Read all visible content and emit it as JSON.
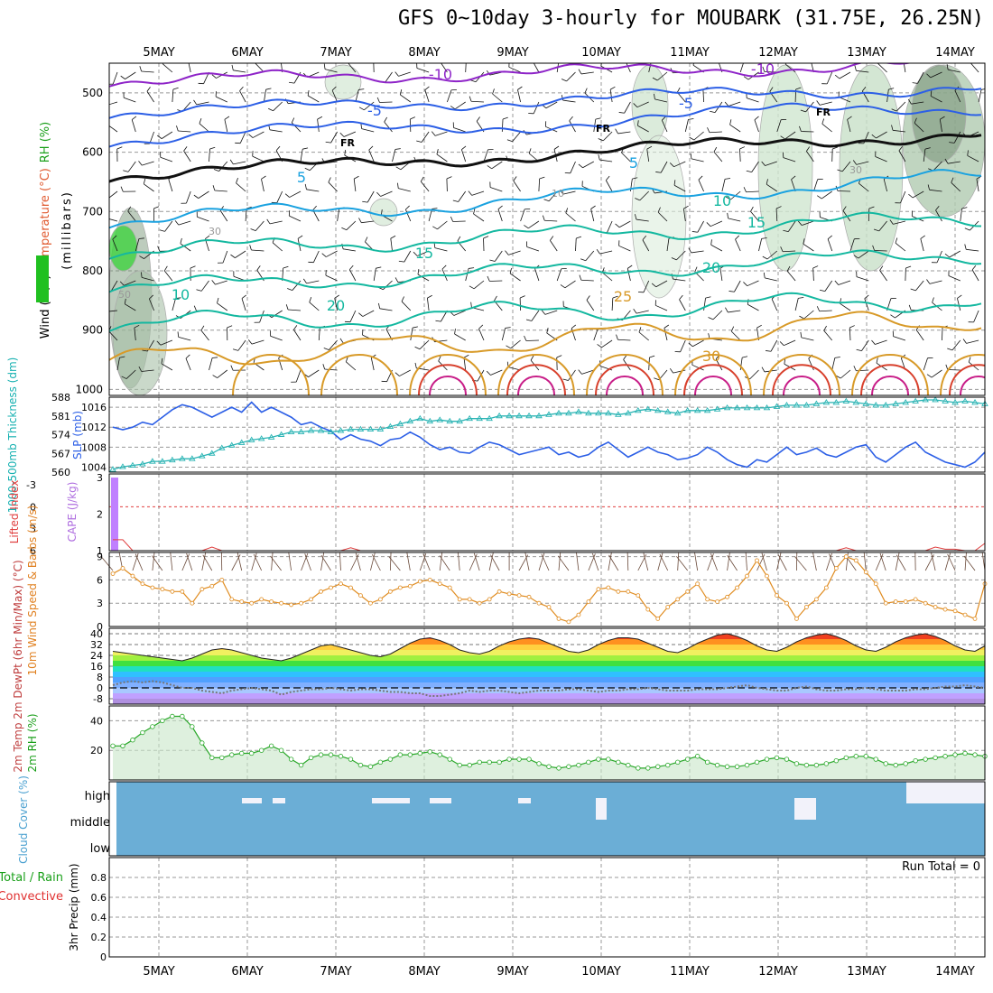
{
  "title": "GFS 0~10day 3-hourly for MOUBARK (31.75E, 26.25N)",
  "days": [
    "5MAY",
    "6MAY",
    "7MAY",
    "8MAY",
    "9MAY",
    "10MAY",
    "11MAY",
    "12MAY",
    "13MAY",
    "14MAY"
  ],
  "colors": {
    "purple": "#8e24c8",
    "blue": "#2c5fe6",
    "lightblue": "#1aa2e0",
    "teal": "#14b8a0",
    "orange": "#d89a28",
    "red": "#d8402c",
    "green": "#2aa82a",
    "cloud": "#6baed6"
  },
  "chart_data": [
    {
      "type": "line",
      "panel": "upper-air",
      "ylabel_parts": [
        "Wind (m/s)",
        "Temperature (°C)",
        "RH (%)"
      ],
      "ylabel2": "(millibars)",
      "yticks": [
        500,
        600,
        700,
        800,
        900,
        1000
      ],
      "contour_labels": [
        "-10",
        "-10",
        "-5",
        "-5",
        "FR",
        "FR",
        "FR",
        "5",
        "5",
        "10",
        "10",
        "15",
        "15",
        "20",
        "20",
        "25",
        "30",
        "10",
        "30",
        "30",
        "50"
      ],
      "series": [
        {
          "name": "-10",
          "values": [
            -10,
            -10,
            -10
          ]
        },
        {
          "name": "-5",
          "values": [
            -5,
            -5,
            -5
          ]
        },
        {
          "name": "FR",
          "values": [
            0,
            0,
            0
          ]
        },
        {
          "name": "5",
          "values": [
            5,
            5,
            5
          ]
        },
        {
          "name": "10",
          "values": [
            10,
            10,
            10
          ]
        },
        {
          "name": "15",
          "values": [
            15,
            15,
            15
          ]
        },
        {
          "name": "20",
          "values": [
            20,
            20,
            20
          ]
        },
        {
          "name": "25",
          "values": [
            25,
            25,
            25
          ]
        }
      ]
    },
    {
      "type": "line",
      "panel": "slp-thickness",
      "ylabel_left": "1000-500mb Thickness (dm)",
      "ylabel_right": "SLP (mb)",
      "yticks_left": [
        560,
        567,
        574,
        581,
        588
      ],
      "yticks_right": [
        1004,
        1008,
        1012,
        1016
      ],
      "ylim_left": [
        560,
        588
      ],
      "ylim_right": [
        1003,
        1018
      ],
      "series": [
        {
          "name": "SLP",
          "values": [
            1012,
            1011.5,
            1012,
            1013,
            1012.5,
            1014,
            1015.5,
            1016.5,
            1016,
            1015,
            1014,
            1015,
            1016,
            1015,
            1017,
            1015,
            1016,
            1015,
            1014,
            1012.5,
            1013,
            1012,
            1011.2,
            1009.5,
            1010.5,
            1009.6,
            1009.2,
            1008.3,
            1009.5,
            1009.8,
            1011,
            1010,
            1008.5,
            1007.5,
            1008,
            1007,
            1006.8,
            1008,
            1009,
            1008.5,
            1007.5,
            1006.5,
            1007,
            1007.5,
            1008,
            1006.5,
            1007,
            1006,
            1006.5,
            1008,
            1009,
            1007.5,
            1006,
            1007,
            1008,
            1007,
            1006.5,
            1005.5,
            1005.8,
            1006.5,
            1008,
            1007,
            1005.5,
            1004.5,
            1004,
            1005.5,
            1005,
            1006.5,
            1008,
            1006.5,
            1007,
            1007.8,
            1006.5,
            1006,
            1007,
            1008,
            1008.5,
            1006,
            1005,
            1006.5,
            1008,
            1009,
            1007,
            1006,
            1005,
            1004.5,
            1004,
            1005,
            1007
          ]
        },
        {
          "name": "Thickness",
          "values": [
            561,
            562,
            562.5,
            563,
            564,
            564,
            564.5,
            565,
            565,
            566,
            567,
            569,
            570,
            571,
            572,
            572.5,
            573,
            574,
            575,
            575,
            575.5,
            575.5,
            575,
            575.5,
            576,
            576,
            576,
            576,
            577,
            578,
            579,
            580,
            579,
            579.5,
            579,
            579,
            580,
            580,
            580,
            581,
            581,
            581,
            581,
            581,
            581.5,
            582,
            582,
            582.5,
            582,
            582,
            582,
            581.5,
            582,
            583,
            583.5,
            583,
            582.5,
            582,
            583,
            583,
            583,
            583.5,
            584,
            584,
            584,
            584,
            584,
            584.5,
            585,
            585,
            585,
            585.5,
            586,
            586,
            586.5,
            586,
            585.5,
            585,
            585,
            585.5,
            586,
            586.5,
            587,
            587,
            586.5,
            586,
            586.5,
            586,
            585.5
          ]
        }
      ]
    },
    {
      "type": "bar",
      "panel": "cape-li",
      "ylabel_left": "Lifted Index",
      "ylabel_right": "CAPE (J/kg)",
      "yticks_left": [
        "-3",
        "0",
        "3",
        "6"
      ],
      "yticks_right": [
        "3",
        "2",
        "1"
      ],
      "series": [
        {
          "name": "CAPE",
          "values": [
            3
          ]
        },
        {
          "name": "Lifted Index",
          "values": [
            4.5,
            4.5,
            6,
            6,
            6,
            6,
            6,
            6,
            6,
            6,
            5.5,
            6,
            6,
            6,
            6,
            6,
            6,
            6,
            6,
            6,
            6,
            6,
            6,
            6,
            5.6,
            6,
            6,
            6,
            6,
            6,
            6,
            6,
            6,
            6,
            6,
            6,
            6,
            6,
            6,
            6,
            6,
            6,
            6,
            6,
            6,
            6,
            6,
            6,
            6,
            6,
            6,
            6,
            6,
            6,
            6,
            6,
            6,
            6,
            6,
            6,
            6,
            6,
            6,
            6,
            6,
            6,
            6,
            6,
            6,
            6,
            6,
            6,
            6,
            6,
            5.6,
            6,
            6,
            6,
            6,
            6,
            6,
            6,
            6,
            5.5,
            5.8,
            5.8,
            6,
            6,
            5
          ]
        }
      ]
    },
    {
      "type": "line",
      "panel": "wind10m",
      "ylabel": "10m Wind Speed & Barbs (m/s)",
      "yticks": [
        0,
        3,
        6,
        9
      ],
      "ylim": [
        0,
        9
      ],
      "series": [
        {
          "name": "10m wind speed",
          "values": [
            6.8,
            7.5,
            6.5,
            5.5,
            5,
            4.8,
            4.5,
            4.5,
            3,
            4.8,
            5.2,
            6,
            3.5,
            3.2,
            3,
            3.5,
            3.2,
            3,
            2.8,
            3,
            3.5,
            4.5,
            5,
            5.5,
            5,
            4,
            3,
            3.5,
            4.5,
            5,
            5.2,
            5.8,
            6,
            5.5,
            5,
            3.5,
            3.5,
            3,
            3.5,
            4.5,
            4.2,
            4,
            3.8,
            3,
            2.5,
            1,
            0.6,
            1.5,
            3.2,
            4.8,
            5,
            4.5,
            4.5,
            4,
            2.2,
            1,
            2.5,
            3.5,
            4.5,
            5.5,
            3.5,
            3.2,
            3.8,
            5,
            6.5,
            8.5,
            6.5,
            4,
            3,
            1,
            2.5,
            3.5,
            5,
            7.5,
            9,
            8.5,
            7,
            5.5,
            3,
            3.2,
            3.2,
            3.5,
            3,
            2.5,
            2.2,
            2,
            1.5,
            1,
            5.5
          ]
        }
      ]
    },
    {
      "type": "line",
      "panel": "temp-dewpt",
      "ylabel": "2m Temp 2m DewPt (6hr Min/Max) (°C)",
      "yticks": [
        -8,
        0,
        8,
        16,
        24,
        32,
        40
      ],
      "ylim": [
        -12,
        44
      ],
      "series": [
        {
          "name": "2m Temp",
          "values": [
            27,
            26,
            25,
            24,
            23,
            22,
            21,
            20,
            22,
            25,
            28,
            29,
            28,
            26,
            24,
            22,
            21,
            20,
            22,
            25,
            28,
            31,
            32,
            30,
            28,
            26,
            24,
            23,
            25,
            29,
            33,
            36,
            37,
            35,
            32,
            28,
            26,
            25,
            27,
            31,
            34,
            36,
            37,
            36,
            33,
            30,
            27,
            26,
            28,
            32,
            35,
            37,
            37,
            36,
            33,
            30,
            27,
            26,
            29,
            33,
            36,
            39,
            40,
            38,
            35,
            31,
            28,
            27,
            30,
            34,
            37,
            39,
            40,
            38,
            35,
            31,
            28,
            27,
            30,
            34,
            37,
            39,
            40,
            38,
            35,
            31,
            28,
            27,
            31
          ]
        },
        {
          "name": "2m DewPt",
          "values": [
            2,
            4,
            5,
            4,
            5,
            4,
            2,
            0,
            0,
            -2,
            -3,
            -4,
            -2,
            -1,
            0,
            -1,
            -2,
            -5,
            -3,
            -2,
            -1,
            -1,
            0,
            -1,
            -2,
            -1,
            -1,
            -2,
            -3,
            -3,
            -4,
            -4,
            -6,
            -6,
            -5,
            -4,
            -2,
            -3,
            -2,
            -2,
            -3,
            -4,
            -3,
            -2,
            -2,
            -2,
            -1,
            -1,
            -2,
            -3,
            -2,
            -2,
            -1,
            -1,
            0,
            -1,
            -2,
            -2,
            -2,
            -1,
            -1,
            -1,
            0,
            1,
            2,
            0,
            -1,
            -2,
            -2,
            0,
            1,
            -1,
            -2,
            -2,
            -1,
            -1,
            0,
            -1,
            -2,
            -2,
            -2,
            -1,
            -1,
            0,
            1,
            1,
            2,
            1,
            0
          ]
        }
      ]
    },
    {
      "type": "area",
      "panel": "rh2m",
      "ylabel": "2m RH (%)",
      "yticks": [
        20,
        40
      ],
      "ylim": [
        0,
        50
      ],
      "series": [
        {
          "name": "2m RH",
          "values": [
            23,
            23,
            27,
            32,
            36,
            40,
            43,
            43,
            36,
            25,
            15,
            15,
            17,
            18,
            18,
            20,
            23,
            20,
            14,
            10,
            15,
            17,
            17,
            16,
            14,
            10,
            9,
            12,
            14,
            17,
            17,
            18,
            19,
            17,
            14,
            10,
            10,
            12,
            12,
            12,
            14,
            14,
            14,
            11,
            9,
            8,
            9,
            10,
            12,
            14,
            14,
            12,
            10,
            8,
            8,
            9,
            10,
            12,
            14,
            16,
            12,
            10,
            9,
            9,
            10,
            12,
            14,
            15,
            14,
            11,
            10,
            10,
            11,
            13,
            15,
            16,
            16,
            14,
            11,
            10,
            11,
            13,
            14,
            15,
            16,
            17,
            18,
            17,
            16
          ]
        }
      ]
    },
    {
      "type": "heatmap",
      "panel": "cloud-cover",
      "ylabel": "Cloud Cover (%)",
      "yticks": [
        "high",
        "middle",
        "low"
      ]
    },
    {
      "type": "bar",
      "panel": "precip",
      "ylabel_parts": [
        "Total / Rain",
        "Convective"
      ],
      "ylabel2": "3hr Precip (mm)",
      "yticks": [
        0,
        0.2,
        0.4,
        0.6,
        0.8
      ],
      "ylim": [
        0,
        1
      ],
      "annotation": "Run Total = 0",
      "series": [
        {
          "name": "precip",
          "values": [
            0
          ]
        }
      ]
    }
  ]
}
